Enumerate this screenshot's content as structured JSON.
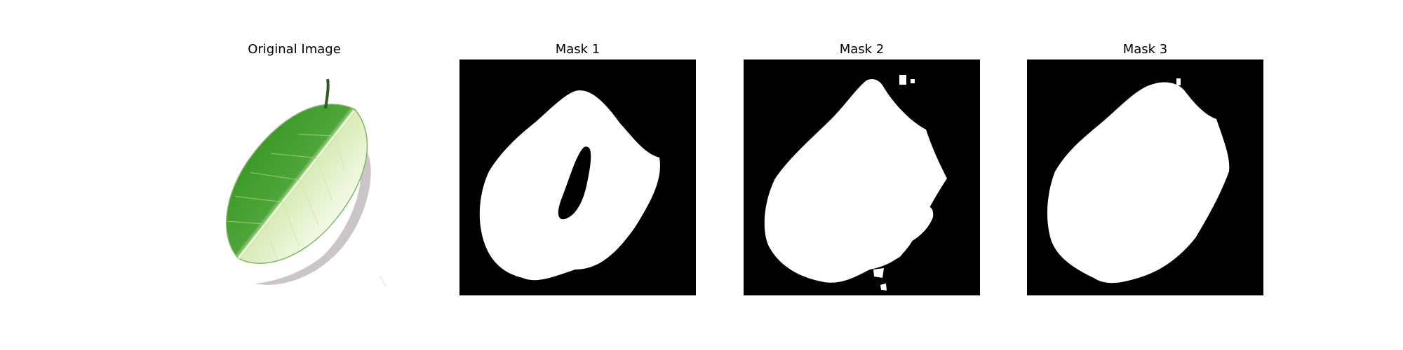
{
  "panels": [
    {
      "title": "Original Image",
      "image": "leaf-photo"
    },
    {
      "title": "Mask 1",
      "image": "binary-mask-with-hole"
    },
    {
      "title": "Mask 2",
      "image": "binary-mask-noisy-edge"
    },
    {
      "title": "Mask 3",
      "image": "binary-mask-solid"
    }
  ],
  "colors": {
    "background": "#ffffff",
    "mask_background": "#000000",
    "mask_foreground": "#ffffff",
    "leaf_dark": "#3f9a2a",
    "leaf_light": "#e6f2cf"
  }
}
